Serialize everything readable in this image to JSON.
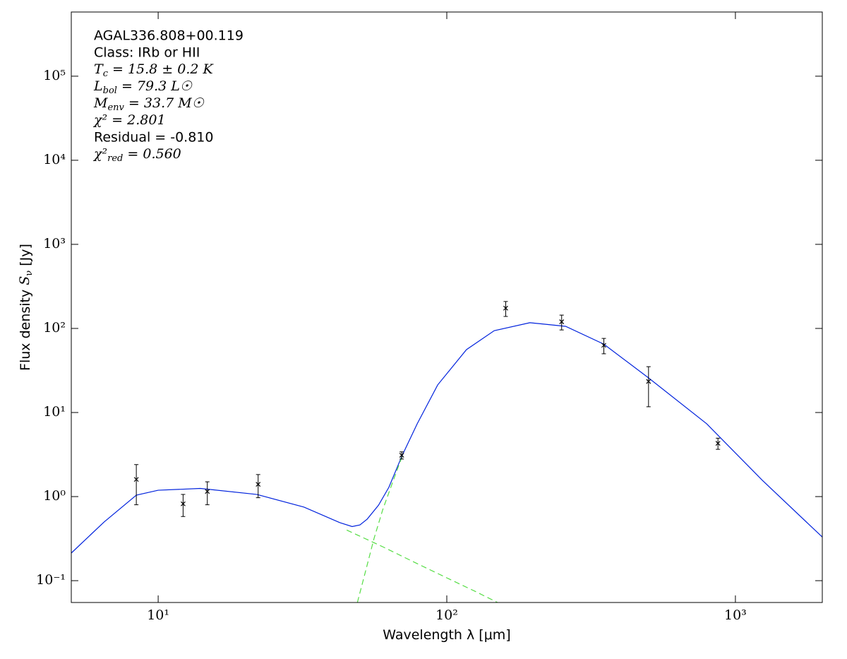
{
  "chart_data": {
    "type": "scatter",
    "xlabel": {
      "main": "Wavelength λ [μm]"
    },
    "ylabel": {
      "main": "Flux density ",
      "sym": "S",
      "sub": "ν",
      "rest": " [Jy]"
    },
    "annotations": [
      "AGAL336.808+00.119",
      "Class: IRb or HII",
      {
        "main": "T",
        "sub": "c",
        "rest": " = 15.8 ± 0.2 K"
      },
      {
        "main": "L",
        "sub": "bol",
        "rest": " = 79.3 L☉"
      },
      {
        "main": "M",
        "sub": "env",
        "rest": " = 33.7 M☉"
      },
      {
        "main": "χ²",
        "rest": " = 2.801"
      },
      "Residual = -0.810",
      {
        "main": "χ²",
        "sub": "red",
        "rest": " = 0.560"
      }
    ],
    "log_x": true,
    "log_y": true,
    "xlim": [
      5,
      2000
    ],
    "ylim": [
      0.055,
      580000
    ],
    "xticks": [
      {
        "value": 10,
        "label": "10¹"
      },
      {
        "value": 100,
        "label": "10²"
      },
      {
        "value": 1000,
        "label": "10³"
      }
    ],
    "yticks": [
      {
        "value": 0.1,
        "label": "10⁻¹"
      },
      {
        "value": 1,
        "label": "10⁰"
      },
      {
        "value": 10,
        "label": "10¹"
      },
      {
        "value": 100,
        "label": "10²"
      },
      {
        "value": 1000,
        "label": "10³"
      },
      {
        "value": 10000,
        "label": "10⁴"
      },
      {
        "value": 100000,
        "label": "10⁵"
      }
    ],
    "series": [
      {
        "style": "points",
        "color": "#000000",
        "x": [
          8.4,
          12.2,
          14.8,
          22.2,
          69.8,
          160,
          250,
          350,
          500,
          870
        ],
        "values": [
          1.6,
          0.82,
          1.15,
          1.4,
          3.1,
          174,
          120,
          63,
          23.4,
          4.3
        ],
        "errors": [
          0.8,
          0.24,
          0.35,
          0.43,
          0.3,
          35,
          24,
          13,
          11.7,
          0.65
        ]
      },
      {
        "style": "solid",
        "color": "#0022dd",
        "x": [
          5,
          6.5,
          8.4,
          10,
          14,
          22,
          32,
          42.6,
          47,
          50,
          53,
          58,
          63,
          70,
          79,
          93,
          117,
          146,
          194,
          258,
          350,
          500,
          795,
          1240,
          2000
        ],
        "values": [
          0.213,
          0.5,
          1.04,
          1.19,
          1.25,
          1.06,
          0.75,
          0.49,
          0.44,
          0.46,
          0.54,
          0.79,
          1.29,
          3.07,
          7.36,
          21.3,
          56,
          94,
          117,
          106,
          65,
          25.8,
          7.35,
          1.56,
          0.33
        ]
      },
      {
        "style": "dashed",
        "color": "#55dd44",
        "x": [
          45,
          60,
          80,
          100,
          125,
          150
        ],
        "values": [
          0.4,
          0.253,
          0.156,
          0.108,
          0.075,
          0.055
        ]
      },
      {
        "style": "dashed",
        "color": "#55dd44",
        "x": [
          49,
          52,
          56,
          60,
          65,
          70
        ],
        "values": [
          0.055,
          0.12,
          0.32,
          0.7,
          1.5,
          3.0
        ]
      }
    ]
  }
}
